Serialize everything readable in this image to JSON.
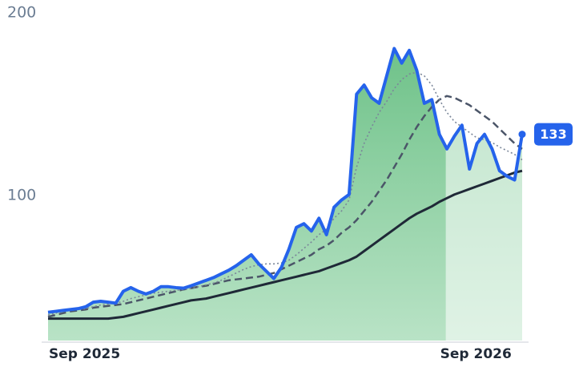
{
  "chart_data": {
    "type": "line",
    "categories": [
      "Sep 2025",
      null,
      null,
      null,
      null,
      null,
      null,
      null,
      null,
      null,
      null,
      null,
      null,
      null,
      null,
      null,
      null,
      null,
      null,
      null,
      null,
      null,
      null,
      null,
      null,
      null,
      null,
      null,
      null,
      null,
      null,
      null,
      null,
      null,
      null,
      null,
      null,
      null,
      null,
      null,
      null,
      null,
      null,
      null,
      null,
      null,
      null,
      null,
      null,
      null,
      null,
      null,
      "Sep 2026",
      null,
      null,
      null,
      null,
      null,
      null,
      null,
      null,
      null,
      null,
      null
    ],
    "series": [
      {
        "color": "#2563eb",
        "values": [
          35.5,
          36,
          36.5,
          37,
          37.5,
          38.5,
          41,
          41.5,
          41,
          40.5,
          47,
          49,
          47,
          45.5,
          47,
          49.5,
          49.5,
          49,
          48.7,
          50,
          51.5,
          53,
          54.5,
          56.5,
          58.5,
          61,
          64,
          67,
          62,
          58,
          54,
          60,
          70,
          82,
          84,
          80,
          87,
          78,
          93,
          97,
          100,
          155,
          160,
          153,
          150,
          165,
          180,
          172,
          179,
          168,
          150,
          152,
          133,
          125,
          132,
          138,
          114,
          128,
          133,
          125,
          113,
          110,
          108,
          133
        ]
      },
      {
        "color": "#7a8699",
        "values": [
          34,
          35,
          36,
          36.5,
          37,
          37.5,
          38.5,
          39.5,
          40,
          40.5,
          41.5,
          43,
          44,
          45,
          46,
          46.5,
          47,
          47.5,
          48,
          48.5,
          49.5,
          50.5,
          51.5,
          53,
          55,
          57,
          59,
          60.5,
          61.5,
          62,
          62,
          62.5,
          64,
          67,
          70.5,
          74,
          78,
          81,
          87,
          91,
          97,
          115,
          128,
          137,
          145,
          151,
          158,
          163,
          166,
          167,
          165,
          160,
          152,
          145,
          140,
          137,
          134,
          131,
          130,
          128.5,
          126,
          124,
          122,
          119
        ]
      },
      {
        "color": "#4b5568",
        "values": [
          33,
          34,
          35,
          36,
          36.5,
          37,
          38,
          38.5,
          39,
          39.5,
          40,
          41,
          42,
          43,
          44,
          45,
          46,
          47,
          48,
          48.7,
          49.5,
          50,
          51,
          52,
          53,
          53.5,
          54,
          54.5,
          55,
          56,
          57,
          59,
          61,
          63,
          65,
          67,
          70,
          72,
          75,
          79,
          82,
          86,
          91,
          96,
          102,
          108,
          115,
          122,
          130,
          137,
          143,
          148,
          152,
          154,
          153,
          151,
          149,
          146,
          143,
          140,
          136,
          132,
          128,
          125
        ]
      },
      {
        "color": "#1f2937",
        "values": [
          32,
          32,
          32,
          32,
          32,
          32,
          32,
          32,
          32,
          32.5,
          33,
          34,
          35,
          36,
          37,
          38,
          39,
          40,
          41,
          42,
          42.5,
          43,
          44,
          45,
          46,
          47,
          48,
          49,
          50,
          51,
          52,
          53,
          54,
          55,
          56,
          57,
          58,
          59.5,
          61,
          62.5,
          64,
          66,
          69,
          72,
          75,
          78,
          81,
          84,
          87,
          89.5,
          91.5,
          93.5,
          96,
          98,
          100,
          101.5,
          103,
          104.5,
          106,
          107.5,
          109,
          110.5,
          112,
          113
        ]
      }
    ],
    "area_color": "#7ccb94",
    "ylim": [
      20,
      200
    ],
    "yticks": [
      100,
      200
    ],
    "grid": false
  }
}
